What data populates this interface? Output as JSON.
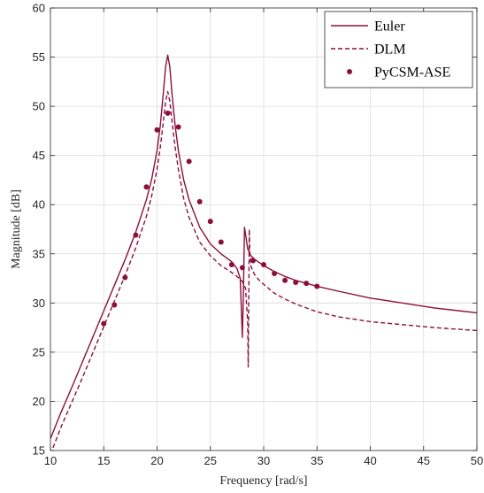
{
  "chart_data": {
    "type": "line",
    "title": "",
    "xlabel": "Frequency [rad/s]",
    "ylabel": "Magnitude [dB]",
    "xlim": [
      10,
      50
    ],
    "ylim": [
      15,
      60
    ],
    "x_ticks": [
      10,
      15,
      20,
      25,
      30,
      35,
      40,
      45,
      50
    ],
    "y_ticks": [
      15,
      20,
      25,
      30,
      35,
      40,
      45,
      50,
      55,
      60
    ],
    "grid": true,
    "legend_position": "top-right",
    "series_color": "#8b0f3c",
    "series": [
      {
        "name": "Euler",
        "style": "solid",
        "x": [
          10,
          11,
          12,
          13,
          14,
          15,
          16,
          17,
          18,
          19,
          19.5,
          20,
          20.3,
          20.6,
          20.8,
          21.0,
          21.2,
          21.4,
          21.7,
          22,
          22.5,
          23,
          24,
          25,
          26,
          27,
          27.5,
          27.8,
          28.0,
          28.1,
          28.2,
          28.3,
          28.5,
          28.8,
          29.2,
          30,
          31,
          32,
          33,
          34,
          35,
          37,
          40,
          43,
          46,
          50
        ],
        "values": [
          16.2,
          18.9,
          21.4,
          24.0,
          26.6,
          29.2,
          31.8,
          34.4,
          37.2,
          40.5,
          42.6,
          45.5,
          48.0,
          51.5,
          54.0,
          55.2,
          54.0,
          51.3,
          48.0,
          45.5,
          42.5,
          40.5,
          37.7,
          36.0,
          35.0,
          34.2,
          33.5,
          32.5,
          26.5,
          31.0,
          37.7,
          37.0,
          35.5,
          34.8,
          34.4,
          33.8,
          33.2,
          32.7,
          32.3,
          32.0,
          31.7,
          31.2,
          30.5,
          30.0,
          29.5,
          29.0
        ]
      },
      {
        "name": "DLM",
        "style": "dashed",
        "x": [
          10,
          11,
          12,
          13,
          14,
          15,
          16,
          17,
          18,
          19,
          19.5,
          20,
          20.3,
          20.6,
          20.8,
          21.0,
          21.2,
          21.4,
          21.7,
          22,
          22.5,
          23,
          24,
          25,
          26,
          27,
          27.5,
          28.0,
          28.3,
          28.5,
          28.55,
          28.6,
          28.65,
          28.7,
          28.8,
          29.0,
          29.2,
          29.5,
          30,
          31,
          32,
          33,
          34,
          35,
          37,
          40,
          43,
          46,
          50
        ],
        "values": [
          14.6,
          17.4,
          19.9,
          22.4,
          25.0,
          27.6,
          30.2,
          32.8,
          35.6,
          38.8,
          40.9,
          43.6,
          45.8,
          48.5,
          50.5,
          51.5,
          50.5,
          48.5,
          45.8,
          43.6,
          40.6,
          38.7,
          36.2,
          34.8,
          33.8,
          33.1,
          32.7,
          32.2,
          31.5,
          28.0,
          23.5,
          30.0,
          37.5,
          35.0,
          33.8,
          33.2,
          32.8,
          32.4,
          31.9,
          31.0,
          30.4,
          29.9,
          29.5,
          29.1,
          28.6,
          28.1,
          27.8,
          27.5,
          27.2
        ]
      },
      {
        "name": "PyCSM-ASE",
        "style": "markers",
        "x": [
          15,
          16,
          17,
          18,
          19,
          20,
          21,
          22,
          23,
          24,
          25,
          26,
          27,
          28,
          29,
          30,
          31,
          32,
          33,
          34,
          35
        ],
        "values": [
          27.9,
          29.8,
          32.6,
          36.9,
          41.8,
          47.6,
          49.3,
          47.9,
          44.4,
          40.3,
          38.3,
          36.2,
          33.9,
          33.6,
          34.3,
          33.9,
          33.0,
          32.3,
          32.1,
          32.0,
          31.7
        ]
      }
    ]
  }
}
